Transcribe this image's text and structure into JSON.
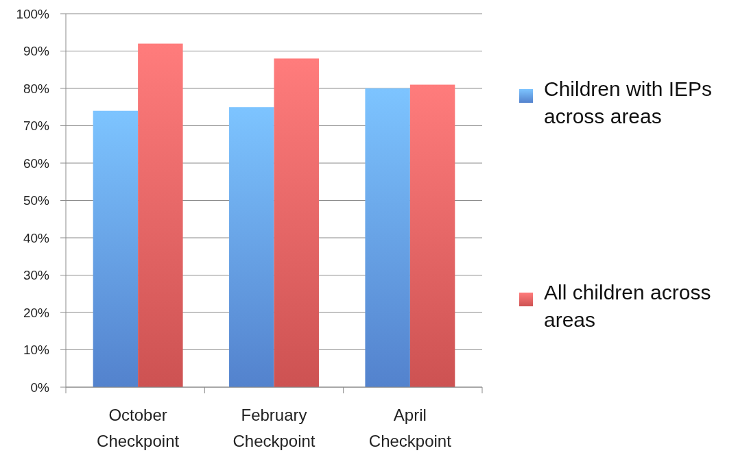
{
  "chart_data": {
    "type": "bar",
    "categories": [
      "October Checkpoint",
      "February Checkpoint",
      "April Checkpoint"
    ],
    "series": [
      {
        "name": "Children with IEPs across areas",
        "color": "#5b8ee0",
        "values": [
          74,
          75,
          80
        ]
      },
      {
        "name": "All children across areas",
        "color": "#e05a5a",
        "values": [
          92,
          88,
          81
        ]
      }
    ],
    "ylim": [
      0,
      100
    ],
    "yticks": [
      {
        "value": 0,
        "label": "0%"
      },
      {
        "value": 10,
        "label": "10%"
      },
      {
        "value": 20,
        "label": "20%"
      },
      {
        "value": 30,
        "label": "30%"
      },
      {
        "value": 40,
        "label": "40%"
      },
      {
        "value": 50,
        "label": "50%"
      },
      {
        "value": 60,
        "label": "60%"
      },
      {
        "value": 70,
        "label": "70%"
      },
      {
        "value": 80,
        "label": "80%"
      },
      {
        "value": 90,
        "label": "90%"
      },
      {
        "value": 100,
        "label": "100%"
      }
    ],
    "grid": "y",
    "legend": "right"
  }
}
